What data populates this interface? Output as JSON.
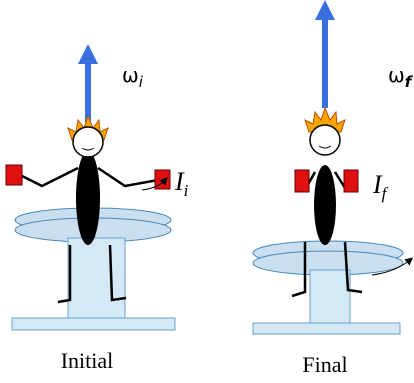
{
  "figures": [
    {
      "omega": "ω",
      "omega_sub": "i",
      "inertia": "I",
      "inertia_sub": "i",
      "caption": "Initial"
    },
    {
      "omega": "ω",
      "omega_sub": "f",
      "inertia": "I",
      "inertia_sub": "f",
      "caption": "Final"
    }
  ]
}
